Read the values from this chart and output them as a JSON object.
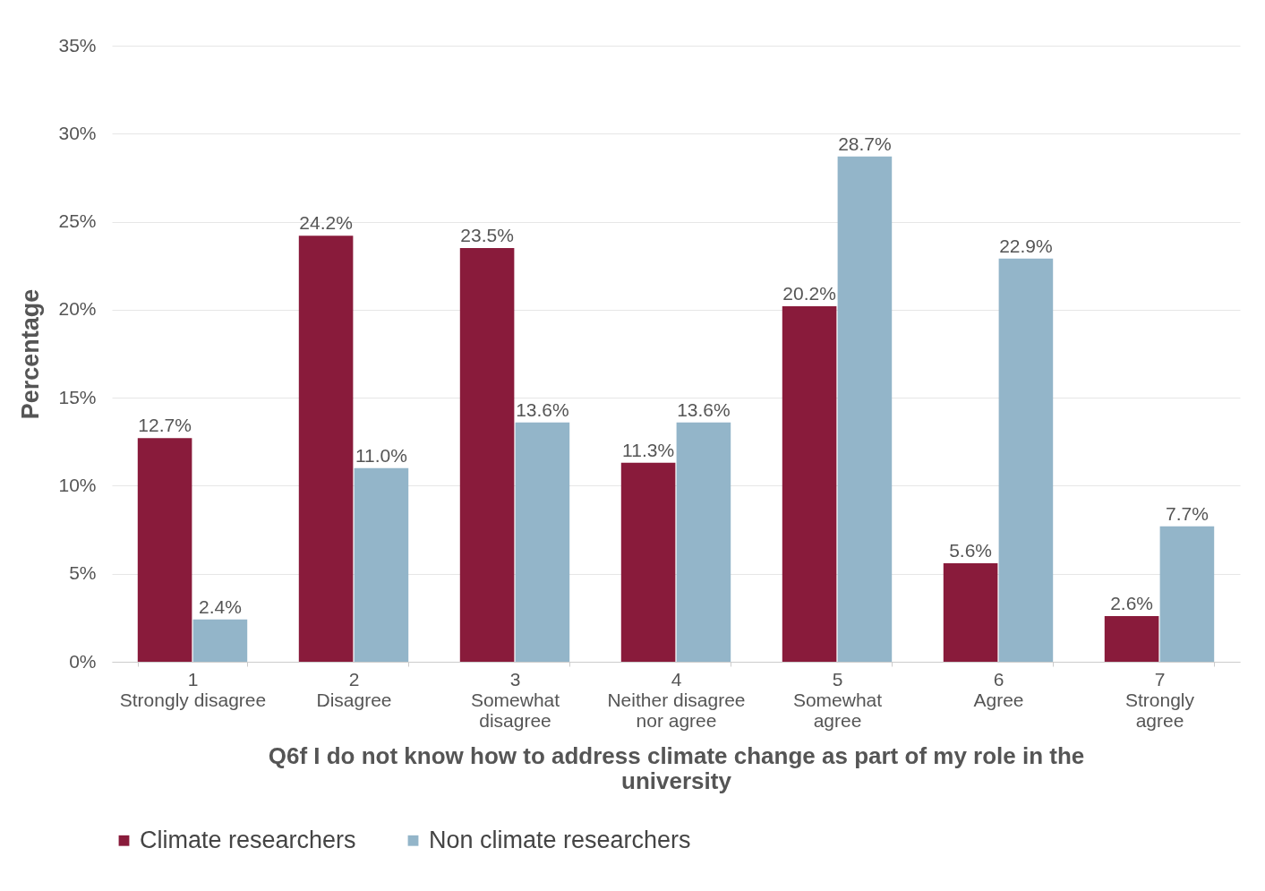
{
  "chart_data": {
    "type": "bar",
    "xlabel": "Q6f I do not know how to address climate change as part of my role in the university",
    "ylabel": "Percentage",
    "categories": [
      "1\nStrongly disagree",
      "2\nDisagree",
      "3\nSomewhat\ndisagree",
      "4\nNeither disagree\nnor agree",
      "5\nSomewhat\nagree",
      "6\nAgree",
      "7\nStrongly\nagree"
    ],
    "series": [
      {
        "name": "Climate researchers",
        "color": "#891b3b",
        "values": [
          12.7,
          24.2,
          23.5,
          11.3,
          20.2,
          5.6,
          2.6
        ],
        "value_labels": [
          "12.7%",
          "24.2%",
          "23.5%",
          "11.3%",
          "20.2%",
          "5.6%",
          "2.6%"
        ]
      },
      {
        "name": "Non climate researchers",
        "color": "#93b5c9",
        "values": [
          2.4,
          11.0,
          13.6,
          13.6,
          28.7,
          22.9,
          7.7
        ],
        "value_labels": [
          "2.4%",
          "11.0%",
          "13.6%",
          "13.6%",
          "28.7%",
          "22.9%",
          "7.7%"
        ]
      }
    ],
    "ylim": [
      0,
      35
    ],
    "yticks": [
      {
        "value": 0,
        "label": "0%"
      },
      {
        "value": 5,
        "label": "5%"
      },
      {
        "value": 10,
        "label": "10%"
      },
      {
        "value": 15,
        "label": "15%"
      },
      {
        "value": 20,
        "label": "20%"
      },
      {
        "value": 25,
        "label": "25%"
      },
      {
        "value": 30,
        "label": "30%"
      },
      {
        "value": 35,
        "label": "35%"
      }
    ],
    "grid": "y",
    "legend": "bottom"
  }
}
